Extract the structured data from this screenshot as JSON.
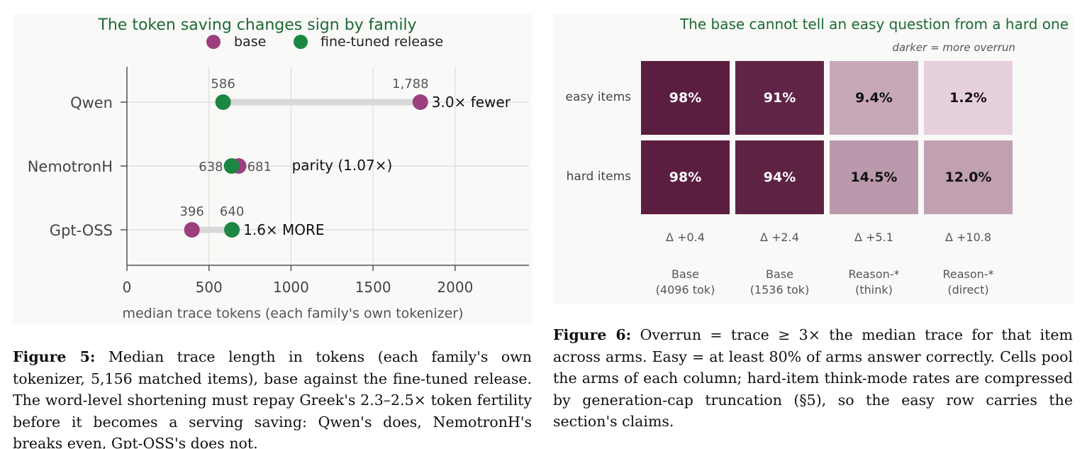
{
  "fig5": {
    "title": "The token saving changes sign by family",
    "legend": [
      "base",
      "fine-tuned release"
    ],
    "xlabel": "median trace tokens (each family's own tokenizer)"
  },
  "fig6": {
    "title": "The base cannot tell an easy question from a hard one",
    "note": "darker = more overrun",
    "rows": [
      "easy items",
      "hard items"
    ],
    "cols": [
      {
        "name": "Base",
        "sub": "(4096 tok)",
        "delta": "Δ +0.4"
      },
      {
        "name": "Base",
        "sub": "(1536 tok)",
        "delta": "Δ +2.4"
      },
      {
        "name": "Reason-*",
        "sub": "(think)",
        "delta": "Δ +5.1"
      },
      {
        "name": "Reason-*",
        "sub": "(direct)",
        "delta": "Δ +10.8"
      }
    ],
    "cells": [
      [
        "98%",
        "91%",
        "9.4%",
        "1.2%"
      ],
      [
        "98%",
        "94%",
        "14.5%",
        "12.0%"
      ]
    ]
  },
  "chart_data": [
    {
      "type": "dumbbell",
      "title": "The token saving changes sign by family",
      "xlabel": "median trace tokens (each family's own tokenizer)",
      "xlim": [
        0,
        2450
      ],
      "xticks": [
        0,
        500,
        1000,
        1500,
        2000
      ],
      "categories": [
        "Qwen",
        "NemotronH",
        "Gpt-OSS"
      ],
      "series": [
        {
          "name": "base",
          "values": [
            1788,
            681,
            396
          ],
          "labels": [
            "1,788",
            "681",
            "396"
          ]
        },
        {
          "name": "fine-tuned release",
          "values": [
            586,
            638,
            640
          ],
          "labels": [
            "586",
            "638",
            "640"
          ]
        }
      ],
      "annotations": [
        "3.0× fewer",
        "parity (1.07×)",
        "1.6× MORE"
      ],
      "colors": {
        "base": "#9c3f7f",
        "fine-tuned release": "#1b8742"
      },
      "legend": "top-center",
      "grid": true
    },
    {
      "type": "heatmap",
      "title": "The base cannot tell an easy question from a hard one",
      "rows": [
        "easy items",
        "hard items"
      ],
      "cols": [
        "Base (4096 tok)",
        "Base (1536 tok)",
        "Reason-* (think)",
        "Reason-* (direct)"
      ],
      "values": [
        [
          98,
          91,
          9.4,
          1.2
        ],
        [
          98,
          94,
          14.5,
          12.0
        ]
      ],
      "unit": "%",
      "deltas": [
        0.4,
        2.4,
        5.1,
        10.8
      ]
    }
  ],
  "captions": {
    "fig5": {
      "label": "Figure 5:",
      "text": "Median trace length in tokens (each family's own tokenizer, 5,156 matched items), base against the fine-tuned release. The word-level shortening must repay Greek's 2.3–2.5× token fertility before it becomes a serving saving: Qwen's does, NemotronH's breaks even, Gpt-OSS's does not."
    },
    "fig6": {
      "label": "Figure 6:",
      "text": "Overrun = trace ≥ 3× the median trace for that item across arms. Easy = at least 80% of arms answer correctly. Cells pool the arms of each column; hard-item think-mode rates are compressed by generation-cap truncation (§5), so the easy row carries the section's claims."
    }
  }
}
